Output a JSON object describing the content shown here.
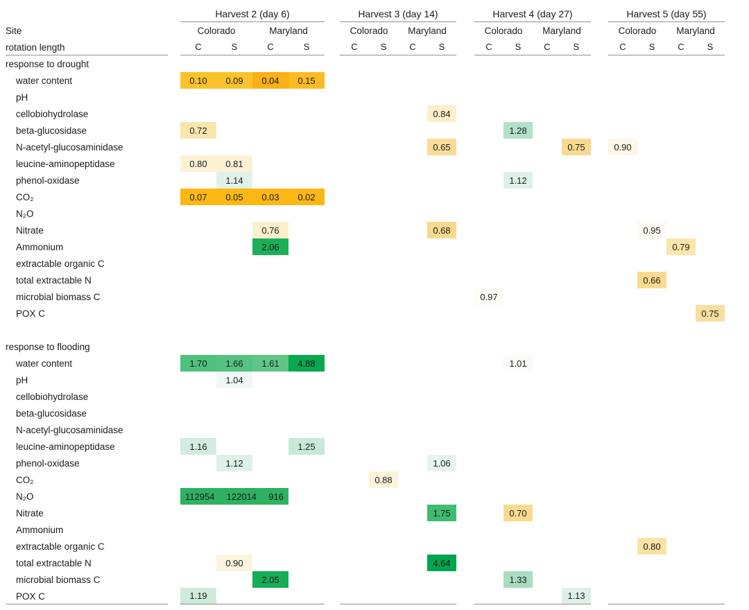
{
  "chart_data": {
    "type": "heatmap",
    "title": "",
    "corner": {
      "site": "Site",
      "rotation": "rotation length"
    },
    "groups": [
      {
        "title": "Harvest 2 (day 6)",
        "sites": [
          "Colorado",
          "Maryland"
        ],
        "cols": [
          "C",
          "S",
          "C",
          "S"
        ]
      },
      {
        "title": "Harvest 3 (day 14)",
        "sites": [
          "Colorado",
          "Maryland"
        ],
        "cols": [
          "C",
          "S",
          "C",
          "S"
        ]
      },
      {
        "title": "Harvest 4 (day 27)",
        "sites": [
          "Colorado",
          "Maryland"
        ],
        "cols": [
          "C",
          "S",
          "C",
          "S"
        ]
      },
      {
        "title": "Harvest 5 (day 55)",
        "sites": [
          "Colorado",
          "Maryland"
        ],
        "cols": [
          "C",
          "S",
          "C",
          "S"
        ]
      }
    ],
    "color_scale": {
      "low_color": "#FBB713",
      "mid_color": "#FFFFFF",
      "high_color": "#00A64F",
      "midpoint": 1
    },
    "sections": [
      {
        "title": "response to drought",
        "rows": [
          {
            "label": "water content",
            "cells": [
              {
                "g": 0,
                "c": 0,
                "v": "0.10",
                "bg": "#FCC22C"
              },
              {
                "g": 0,
                "c": 1,
                "v": "0.09",
                "bg": "#FCC22C"
              },
              {
                "g": 0,
                "c": 2,
                "v": "0.04",
                "bg": "#FBB018"
              },
              {
                "g": 0,
                "c": 3,
                "v": "0.15",
                "bg": "#FCBB24"
              }
            ]
          },
          {
            "label": "pH",
            "cells": []
          },
          {
            "label": "cellobiohydrolase",
            "cells": [
              {
                "g": 1,
                "c": 3,
                "v": "0.84",
                "bg": "#FCF0CA"
              }
            ]
          },
          {
            "label": "beta-glucosidase",
            "cells": [
              {
                "g": 0,
                "c": 0,
                "v": "0.72",
                "bg": "#FAE5AF"
              },
              {
                "g": 2,
                "c": 1,
                "v": "1.28",
                "bg": "#B2E1C8"
              }
            ]
          },
          {
            "label": "N-acetyl-glucosaminidase",
            "cells": [
              {
                "g": 1,
                "c": 3,
                "v": "0.65",
                "bg": "#FBDC96"
              },
              {
                "g": 2,
                "c": 3,
                "v": "0.75",
                "bg": "#F9D98F"
              },
              {
                "g": 3,
                "c": 0,
                "v": "0.90",
                "bg": "#FEF6E6"
              }
            ]
          },
          {
            "label": "leucine-aminopeptidase",
            "cells": [
              {
                "g": 0,
                "c": 0,
                "v": "0.80",
                "bg": "#FDF1D5"
              },
              {
                "g": 0,
                "c": 1,
                "v": "0.81",
                "bg": "#FDF1D5"
              }
            ]
          },
          {
            "label": "phenol-oxidase",
            "cells": [
              {
                "g": 0,
                "c": 1,
                "v": "1.14",
                "bg": "#DFF1E9"
              },
              {
                "g": 2,
                "c": 1,
                "v": "1.12",
                "bg": "#DDF1E7"
              }
            ]
          },
          {
            "label": "CO₂",
            "cells": [
              {
                "g": 0,
                "c": 0,
                "v": "0.07",
                "bg": "#FBB713"
              },
              {
                "g": 0,
                "c": 1,
                "v": "0.05",
                "bg": "#FBB713"
              },
              {
                "g": 0,
                "c": 2,
                "v": "0.03",
                "bg": "#FBB713"
              },
              {
                "g": 0,
                "c": 3,
                "v": "0.02",
                "bg": "#FBB713"
              }
            ]
          },
          {
            "label": "N₂O",
            "cells": []
          },
          {
            "label": "Nitrate",
            "cells": [
              {
                "g": 0,
                "c": 2,
                "v": "0.76",
                "bg": "#FCF0CC"
              },
              {
                "g": 1,
                "c": 3,
                "v": "0.68",
                "bg": "#FAD98E"
              },
              {
                "g": 3,
                "c": 1,
                "v": "0.95",
                "bg": "#FDFAF1"
              }
            ]
          },
          {
            "label": "Ammonium",
            "cells": [
              {
                "g": 0,
                "c": 2,
                "v": "2.06",
                "bg": "#1CAE59"
              },
              {
                "g": 3,
                "c": 2,
                "v": "0.79",
                "bg": "#FBE5A9"
              }
            ]
          },
          {
            "label": "extractable organic C",
            "cells": []
          },
          {
            "label": "total extractable N",
            "cells": [
              {
                "g": 3,
                "c": 1,
                "v": "0.66",
                "bg": "#FBDA90"
              }
            ]
          },
          {
            "label": "microbial biomass C",
            "cells": [
              {
                "g": 2,
                "c": 0,
                "v": "0.97",
                "bg": "#FDFBF5"
              }
            ]
          },
          {
            "label": "POX C",
            "cells": [
              {
                "g": 3,
                "c": 3,
                "v": "0.75",
                "bg": "#F8DFA0"
              }
            ]
          }
        ]
      },
      {
        "title": "response to flooding",
        "rows": [
          {
            "label": "water content",
            "cells": [
              {
                "g": 0,
                "c": 0,
                "v": "1.70",
                "bg": "#50C17C"
              },
              {
                "g": 0,
                "c": 1,
                "v": "1.66",
                "bg": "#55C280"
              },
              {
                "g": 0,
                "c": 2,
                "v": "1.61",
                "bg": "#60C687"
              },
              {
                "g": 0,
                "c": 3,
                "v": "4.88",
                "bg": "#09A750"
              },
              {
                "g": 2,
                "c": 1,
                "v": "1.01",
                "bg": "#F7FAF7"
              }
            ]
          },
          {
            "label": "pH",
            "cells": [
              {
                "g": 0,
                "c": 1,
                "v": "1.04",
                "bg": "#F0F8F6"
              }
            ]
          },
          {
            "label": "cellobiohydrolase",
            "cells": []
          },
          {
            "label": "beta-glucosidase",
            "cells": []
          },
          {
            "label": "N-acetyl-glucosaminidase",
            "cells": []
          },
          {
            "label": "leucine-aminopeptidase",
            "cells": [
              {
                "g": 0,
                "c": 0,
                "v": "1.16",
                "bg": "#D2EDDF"
              },
              {
                "g": 0,
                "c": 3,
                "v": "1.25",
                "bg": "#C7E9D7"
              }
            ]
          },
          {
            "label": "phenol-oxidase",
            "cells": [
              {
                "g": 0,
                "c": 1,
                "v": "1.12",
                "bg": "#DDF1E7"
              },
              {
                "g": 1,
                "c": 3,
                "v": "1.06",
                "bg": "#E7F4EE"
              }
            ]
          },
          {
            "label": "CO₂",
            "cells": [
              {
                "g": 1,
                "c": 1,
                "v": "0.88",
                "bg": "#FDF3DA"
              }
            ]
          },
          {
            "label": "N₂O",
            "cells": [
              {
                "g": 0,
                "c": 0,
                "span": 3,
                "values": [
                  "112954",
                  "122014",
                  "916"
                ],
                "bg": "#2FB162"
              }
            ]
          },
          {
            "label": "Nitrate",
            "cells": [
              {
                "g": 1,
                "c": 3,
                "v": "1.75",
                "bg": "#3FBC70"
              },
              {
                "g": 2,
                "c": 1,
                "v": "0.70",
                "bg": "#F9DA92"
              }
            ]
          },
          {
            "label": "Ammonium",
            "cells": []
          },
          {
            "label": "extractable organic C",
            "cells": [
              {
                "g": 3,
                "c": 1,
                "v": "0.80",
                "bg": "#FAE3A4"
              }
            ]
          },
          {
            "label": "total extractable N",
            "cells": [
              {
                "g": 0,
                "c": 1,
                "v": "0.90",
                "bg": "#FDF4DE"
              },
              {
                "g": 1,
                "c": 3,
                "v": "4.64",
                "bg": "#00A64F"
              }
            ]
          },
          {
            "label": "microbial biomass C",
            "cells": [
              {
                "g": 0,
                "c": 2,
                "v": "2.05",
                "bg": "#16AD57"
              },
              {
                "g": 2,
                "c": 1,
                "v": "1.33",
                "bg": "#A9DDC1"
              }
            ]
          },
          {
            "label": "POX C",
            "cells": [
              {
                "g": 0,
                "c": 0,
                "v": "1.19",
                "bg": "#CDEBDB"
              },
              {
                "g": 2,
                "c": 3,
                "v": "1.13",
                "bg": "#DDF1E7"
              }
            ]
          }
        ]
      }
    ]
  }
}
